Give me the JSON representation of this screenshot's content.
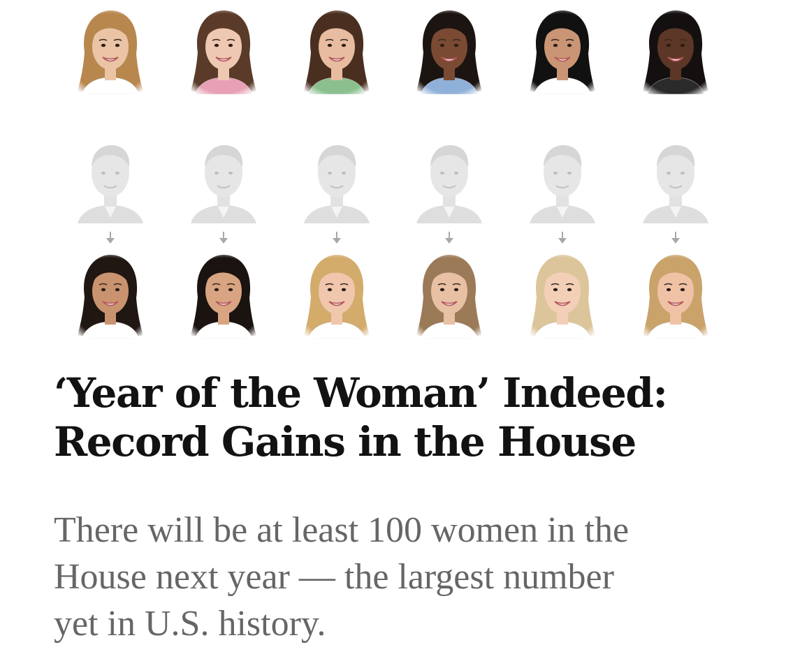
{
  "article": {
    "headline_line1": "‘Year of the Woman’ Indeed:",
    "headline_line2": "Record Gains in the House",
    "summary_line1": "There will be at least 100 women in the",
    "summary_line2": "House next year — the largest number",
    "summary_line3": "yet in U.S. history."
  },
  "portrait_rows": [
    {
      "row": "incoming-women-top",
      "style": "color",
      "portraits": [
        {
          "icon": "woman-portrait",
          "hair": "#b8874e",
          "skin": "#eac4a5",
          "shirt": "#ffffff"
        },
        {
          "icon": "woman-portrait",
          "hair": "#5a3a28",
          "skin": "#efc8b1",
          "shirt": "#e7a0b6"
        },
        {
          "icon": "woman-portrait",
          "hair": "#4a2f20",
          "skin": "#e8bca0",
          "shirt": "#8bc08e"
        },
        {
          "icon": "woman-portrait",
          "hair": "#1c1411",
          "skin": "#7a4a32",
          "shirt": "#8fb0d9"
        },
        {
          "icon": "woman-portrait",
          "hair": "#111111",
          "skin": "#c99574",
          "shirt": "#ffffff"
        },
        {
          "icon": "woman-portrait",
          "hair": "#151010",
          "skin": "#5c3626",
          "shirt": "#2a2a2a"
        }
      ]
    },
    {
      "row": "outgoing-men",
      "style": "faded",
      "portraits": [
        {
          "icon": "man-portrait-faded"
        },
        {
          "icon": "man-portrait-faded"
        },
        {
          "icon": "man-portrait-faded"
        },
        {
          "icon": "man-portrait-faded"
        },
        {
          "icon": "man-portrait-faded"
        },
        {
          "icon": "man-portrait-faded"
        }
      ]
    },
    {
      "row": "incoming-women-bottom",
      "style": "color",
      "portraits": [
        {
          "icon": "woman-portrait",
          "hair": "#201612",
          "skin": "#c9936f",
          "shirt": "#ffffff"
        },
        {
          "icon": "woman-portrait",
          "hair": "#1a1310",
          "skin": "#d9a482",
          "shirt": "#ffffff"
        },
        {
          "icon": "woman-portrait",
          "hair": "#d3ab6b",
          "skin": "#f0c7ad",
          "shirt": "#ffffff"
        },
        {
          "icon": "woman-portrait",
          "hair": "#9b7a57",
          "skin": "#e8c0a4",
          "shirt": "#ffffff"
        },
        {
          "icon": "woman-portrait",
          "hair": "#dcc59a",
          "skin": "#f3cfb8",
          "shirt": "#ffffff"
        },
        {
          "icon": "woman-portrait",
          "hair": "#c9a36a",
          "skin": "#efc2a6",
          "shirt": "#ffffff"
        }
      ]
    }
  ],
  "arrow_icon": "arrow-down-icon",
  "colors": {
    "headline": "#121212",
    "summary": "#666666",
    "faded_portrait": "#d6d6d6",
    "arrow": "#a8a8a8"
  }
}
